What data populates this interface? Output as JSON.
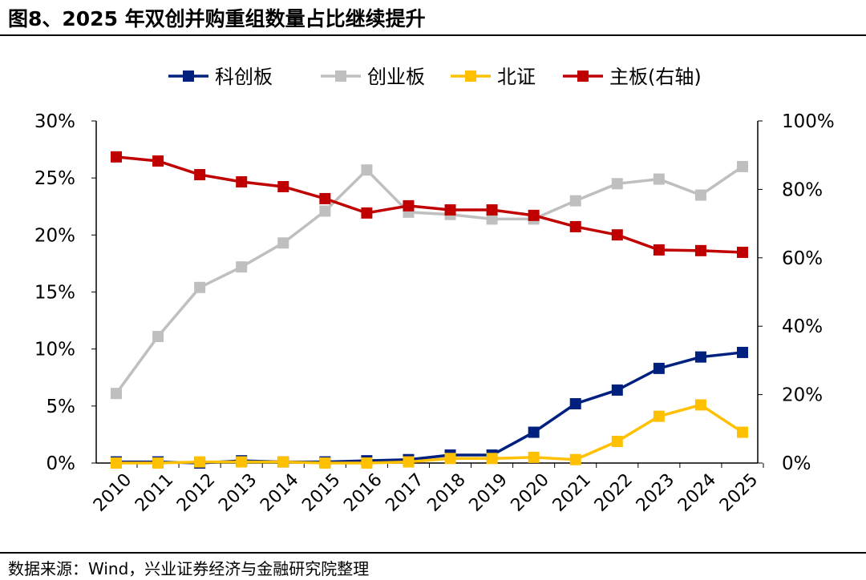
{
  "title": "图8、2025 年双创并购重组数量占比继续提升",
  "source": "数据来源：Wind，兴业证券经济与金融研究院整理",
  "chart_data": {
    "type": "line",
    "title": "图8、2025 年双创并购重组数量占比继续提升",
    "categories": [
      "2010",
      "2011",
      "2012",
      "2013",
      "2014",
      "2015",
      "2016",
      "2017",
      "2018",
      "2019",
      "2020",
      "2021",
      "2022",
      "2023",
      "2024",
      "2025"
    ],
    "left_axis": {
      "range": [
        0,
        30
      ],
      "ticks": [
        "0%",
        "5%",
        "10%",
        "15%",
        "20%",
        "25%",
        "30%"
      ]
    },
    "right_axis": {
      "range": [
        0,
        100
      ],
      "ticks": [
        "0%",
        "20%",
        "40%",
        "60%",
        "80%",
        "100%"
      ]
    },
    "grid": false,
    "legend_position": "top",
    "series": [
      {
        "name": "科创板",
        "axis": "left",
        "color": "#002080",
        "values": [
          0.1,
          0.1,
          0.0,
          0.2,
          0.1,
          0.1,
          0.2,
          0.3,
          0.7,
          0.7,
          2.7,
          5.2,
          6.4,
          8.3,
          9.3,
          9.7
        ]
      },
      {
        "name": "创业板",
        "axis": "left",
        "color": "#bfbfbf",
        "values": [
          6.1,
          11.1,
          15.4,
          17.2,
          19.3,
          22.1,
          25.7,
          22.0,
          21.8,
          21.4,
          21.4,
          23.0,
          24.5,
          24.9,
          23.5,
          26.0
        ]
      },
      {
        "name": "北证",
        "axis": "left",
        "color": "#ffc000",
        "values": [
          0.0,
          0.0,
          0.1,
          0.1,
          0.1,
          0.0,
          0.0,
          0.1,
          0.4,
          0.4,
          0.5,
          0.3,
          1.9,
          4.1,
          5.1,
          2.7
        ]
      },
      {
        "name": "主板(右轴)",
        "axis": "right",
        "color": "#c00000",
        "values": [
          89.5,
          88.3,
          84.3,
          82.2,
          80.8,
          77.3,
          73.1,
          75.2,
          74.0,
          74.0,
          72.4,
          69.1,
          66.7,
          62.3,
          62.1,
          61.6
        ]
      }
    ]
  }
}
